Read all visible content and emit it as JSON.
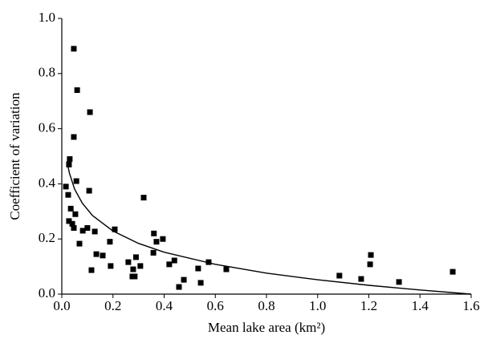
{
  "chart_data": {
    "type": "scatter",
    "x_label": "Mean lake area (km²)",
    "y_label": "Coefficient of variation",
    "xlim": [
      0,
      1.6
    ],
    "ylim": [
      0,
      1.0
    ],
    "xticks": [
      {
        "value": 0,
        "label": "0.0"
      },
      0.2,
      0.4,
      0.6,
      0.8,
      {
        "value": 1,
        "label": "1.0"
      },
      1.2,
      1.4,
      1.6
    ],
    "yticks": [
      {
        "value": 0,
        "label": "0.0"
      },
      0.2,
      0.4,
      0.6,
      0.8,
      {
        "value": 1,
        "label": "1.0"
      }
    ],
    "color": "#000000",
    "x": [
      0.047,
      0.06,
      0.11,
      0.047,
      0.031,
      0.028,
      0.057,
      0.016,
      0.107,
      0.025,
      0.32,
      0.035,
      0.053,
      0.028,
      0.041,
      0.047,
      0.082,
      0.1,
      0.129,
      0.207,
      0.36,
      0.395,
      0.37,
      0.069,
      0.188,
      0.135,
      0.16,
      0.358,
      0.44,
      0.42,
      0.191,
      0.116,
      0.26,
      0.29,
      0.307,
      0.279,
      0.276,
      0.285,
      0.477,
      0.458,
      0.533,
      0.574,
      0.643,
      0.543,
      1.085,
      1.17,
      1.208,
      1.205,
      1.318,
      1.528
    ],
    "values": [
      0.89,
      0.74,
      0.66,
      0.57,
      0.49,
      0.47,
      0.41,
      0.39,
      0.375,
      0.36,
      0.35,
      0.31,
      0.29,
      0.265,
      0.255,
      0.24,
      0.23,
      0.24,
      0.227,
      0.235,
      0.22,
      0.2,
      0.19,
      0.183,
      0.19,
      0.145,
      0.14,
      0.15,
      0.122,
      0.108,
      0.102,
      0.087,
      0.116,
      0.134,
      0.102,
      0.09,
      0.064,
      0.064,
      0.052,
      0.026,
      0.093,
      0.116,
      0.09,
      0.041,
      0.067,
      0.055,
      0.142,
      0.108,
      0.044,
      0.081
    ],
    "fit": {
      "x": [
        0.02,
        0.03,
        0.05,
        0.08,
        0.12,
        0.2,
        0.3,
        0.4,
        0.6,
        0.8,
        1.0,
        1.2,
        1.4,
        1.6
      ],
      "values": [
        0.482,
        0.438,
        0.381,
        0.33,
        0.285,
        0.229,
        0.184,
        0.152,
        0.108,
        0.076,
        0.052,
        0.032,
        0.015,
        0
      ]
    }
  }
}
